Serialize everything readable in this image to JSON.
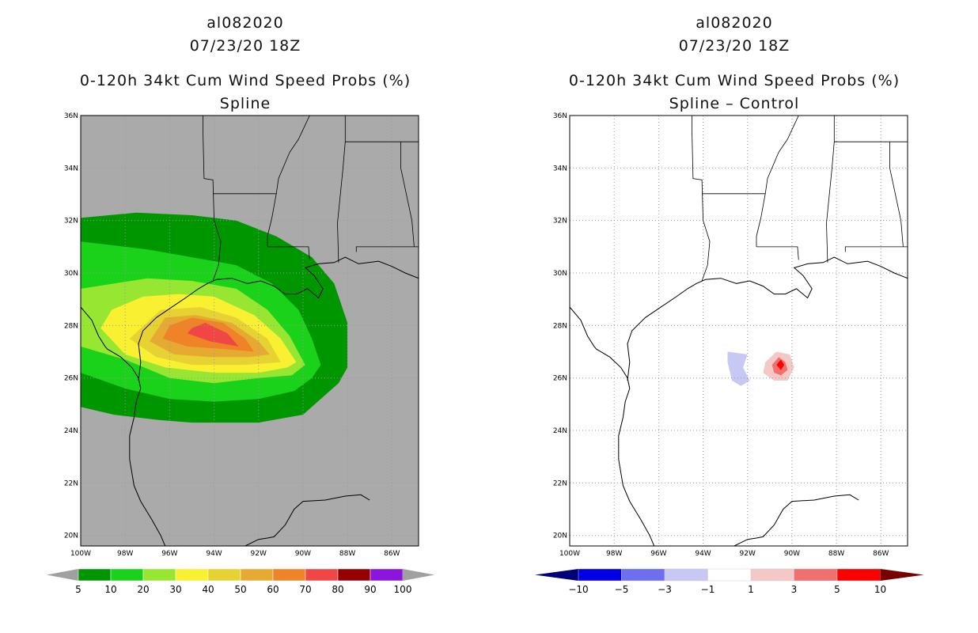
{
  "left_panel": {
    "storm_id": "al082020",
    "datetime": "07/23/20 18Z",
    "product": "0-120h 34kt Cum Wind Speed Probs (%)",
    "subtitle": "Spline"
  },
  "right_panel": {
    "storm_id": "al082020",
    "datetime": "07/23/20 18Z",
    "product": "0-120h 34kt Cum Wind Speed Probs (%)",
    "subtitle": "Spline – Control"
  },
  "axes": {
    "lat_labels": [
      "36N",
      "34N",
      "32N",
      "30N",
      "28N",
      "26N",
      "24N",
      "22N",
      "20N"
    ],
    "lat_values": [
      36,
      34,
      32,
      30,
      28,
      26,
      24,
      22,
      20
    ],
    "lon_labels": [
      "100W",
      "98W",
      "96W",
      "94W",
      "92W",
      "90W",
      "88W",
      "86W"
    ],
    "lon_values": [
      -100,
      -98,
      -96,
      -94,
      -92,
      -90,
      -88,
      -86
    ],
    "lon_range": [
      -100,
      -84.8
    ],
    "lat_range": [
      19.6,
      36
    ]
  },
  "legend_left": {
    "labels": [
      "5",
      "10",
      "20",
      "30",
      "40",
      "50",
      "60",
      "70",
      "80",
      "90",
      "100"
    ],
    "colors": [
      "#009600",
      "#19d219",
      "#96e632",
      "#faf032",
      "#e6d232",
      "#e6aa32",
      "#f08228",
      "#f04646",
      "#960000",
      "#8c14dc"
    ],
    "end_color": "#a0a0a0"
  },
  "legend_right": {
    "labels": [
      "-10",
      "-5",
      "-3",
      "-1",
      "1",
      "3",
      "5",
      "10"
    ],
    "colors": [
      "#0000e6",
      "#6e6ef0",
      "#c8c8f5",
      "#ffffff",
      "#f5c8c8",
      "#f07070",
      "#ff0000"
    ],
    "low_end_color": "#000078",
    "high_end_color": "#780000"
  },
  "chart_data": [
    {
      "type": "heatmap",
      "title": "0-120h 34kt Cum Wind Speed Probs (%) – Spline",
      "unit": "%",
      "contour_levels": [
        5,
        10,
        20,
        30,
        40,
        50,
        60,
        70,
        80,
        90,
        100
      ],
      "region": "Gulf of Mexico / Texas coast",
      "xlim": [
        -100,
        -84.8
      ],
      "ylim": [
        19.6,
        36
      ],
      "filled_regions": [
        {
          "level": 5,
          "polygon_lonlat": [
            [
              -100,
              24.9
            ],
            [
              -98.5,
              24.6
            ],
            [
              -96.5,
              24.4
            ],
            [
              -95,
              24.3
            ],
            [
              -92,
              24.3
            ],
            [
              -90,
              24.6
            ],
            [
              -88.4,
              25.8
            ],
            [
              -88,
              26.4
            ],
            [
              -88,
              28.1
            ],
            [
              -88.6,
              29.6
            ],
            [
              -89.6,
              30.6
            ],
            [
              -91.2,
              31.4
            ],
            [
              -93,
              32
            ],
            [
              -95,
              32.2
            ],
            [
              -97.5,
              32.3
            ],
            [
              -100,
              32.1
            ]
          ]
        },
        {
          "level": 10,
          "polygon_lonlat": [
            [
              -100,
              26.2
            ],
            [
              -98,
              25.6
            ],
            [
              -96,
              25.2
            ],
            [
              -94,
              25.1
            ],
            [
              -92,
              25.2
            ],
            [
              -90.4,
              25.5
            ],
            [
              -89.6,
              26
            ],
            [
              -89.2,
              26.5
            ],
            [
              -89.6,
              27.5
            ],
            [
              -90.2,
              28.6
            ],
            [
              -91.4,
              29.6
            ],
            [
              -93,
              30.3
            ],
            [
              -95,
              30.6
            ],
            [
              -97,
              30.9
            ],
            [
              -100,
              31.2
            ]
          ]
        },
        {
          "level": 20,
          "polygon_lonlat": [
            [
              -100,
              27.2
            ],
            [
              -98,
              26.7
            ],
            [
              -96,
              26
            ],
            [
              -94,
              25.8
            ],
            [
              -92,
              26
            ],
            [
              -90.5,
              26.1
            ],
            [
              -89.9,
              26.5
            ],
            [
              -90.6,
              27.6
            ],
            [
              -91.6,
              28.6
            ],
            [
              -93,
              29.4
            ],
            [
              -95,
              29.7
            ],
            [
              -97,
              29.8
            ],
            [
              -100,
              29.4
            ]
          ]
        },
        {
          "level": 30,
          "polygon_lonlat": [
            [
              -99.1,
              27.9
            ],
            [
              -98,
              26.9
            ],
            [
              -96.2,
              26.4
            ],
            [
              -94,
              26.2
            ],
            [
              -92,
              26.2
            ],
            [
              -90.7,
              26.4
            ],
            [
              -90.3,
              26.6
            ],
            [
              -91,
              27.5
            ],
            [
              -92.2,
              28.4
            ],
            [
              -94,
              29.1
            ],
            [
              -95.6,
              29.2
            ],
            [
              -97.2,
              29.1
            ],
            [
              -98.6,
              28.6
            ]
          ]
        },
        {
          "level": 40,
          "polygon_lonlat": [
            [
              -97.8,
              27.5
            ],
            [
              -96.6,
              26.8
            ],
            [
              -95,
              26.5
            ],
            [
              -92.6,
              26.5
            ],
            [
              -91,
              26.6
            ],
            [
              -91.6,
              27.5
            ],
            [
              -93,
              28.3
            ],
            [
              -94.6,
              28.7
            ],
            [
              -96.4,
              28.6
            ]
          ]
        },
        {
          "level": 50,
          "polygon_lonlat": [
            [
              -96.9,
              27.4
            ],
            [
              -95.8,
              26.9
            ],
            [
              -94.2,
              26.8
            ],
            [
              -92.4,
              26.8
            ],
            [
              -91.5,
              26.9
            ],
            [
              -92,
              27.4
            ],
            [
              -93.2,
              28.1
            ],
            [
              -94.8,
              28.4
            ],
            [
              -96.2,
              28.3
            ]
          ]
        },
        {
          "level": 60,
          "polygon_lonlat": [
            [
              -96.3,
              27.5
            ],
            [
              -95.2,
              27.2
            ],
            [
              -93.5,
              27.1
            ],
            [
              -92.2,
              27
            ],
            [
              -92.6,
              27.5
            ],
            [
              -93.6,
              28.1
            ],
            [
              -95,
              28.3
            ],
            [
              -96,
              28
            ]
          ]
        },
        {
          "level": 70,
          "polygon_lonlat": [
            [
              -95.2,
              27.7
            ],
            [
              -94.2,
              27.4
            ],
            [
              -92.9,
              27.2
            ],
            [
              -93.4,
              27.7
            ],
            [
              -94.4,
              28.1
            ],
            [
              -95,
              27.9
            ]
          ]
        }
      ]
    },
    {
      "type": "heatmap",
      "title": "0-120h 34kt Cum Wind Speed Probs (%) – Spline minus Control",
      "unit": "% difference",
      "contour_levels": [
        -10,
        -5,
        -3,
        -1,
        1,
        3,
        5,
        10
      ],
      "xlim": [
        -100,
        -84.8
      ],
      "ylim": [
        19.6,
        36
      ],
      "filled_regions": [
        {
          "level": -1,
          "polygon_lonlat": [
            [
              -92.9,
              27
            ],
            [
              -92,
              26.9
            ],
            [
              -92.2,
              26.4
            ],
            [
              -91.9,
              25.9
            ],
            [
              -92.3,
              25.7
            ],
            [
              -92.7,
              25.9
            ],
            [
              -92.9,
              26.6
            ]
          ]
        },
        {
          "level": 1,
          "polygon_lonlat": [
            [
              -91.2,
              26.6
            ],
            [
              -90.7,
              27
            ],
            [
              -90.1,
              26.9
            ],
            [
              -89.9,
              26.4
            ],
            [
              -90.2,
              25.9
            ],
            [
              -90.8,
              25.9
            ],
            [
              -91.3,
              26.2
            ]
          ]
        },
        {
          "level": 3,
          "polygon_lonlat": [
            [
              -90.9,
              26.5
            ],
            [
              -90.6,
              26.8
            ],
            [
              -90.3,
              26.6
            ],
            [
              -90.2,
              26.3
            ],
            [
              -90.5,
              26.1
            ],
            [
              -90.8,
              26.2
            ]
          ]
        },
        {
          "level": 5,
          "polygon_lonlat": [
            [
              -90.7,
              26.5
            ],
            [
              -90.5,
              26.7
            ],
            [
              -90.35,
              26.5
            ],
            [
              -90.5,
              26.3
            ]
          ]
        }
      ]
    }
  ]
}
